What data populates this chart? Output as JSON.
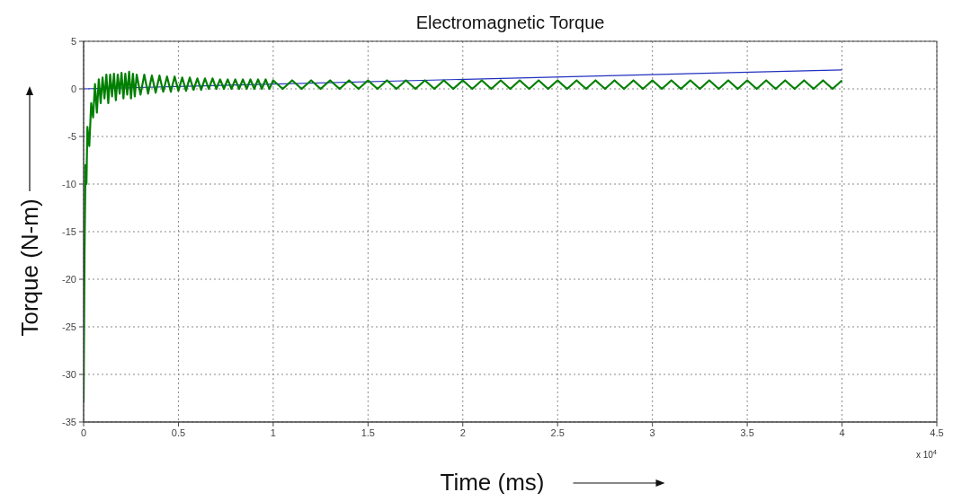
{
  "chart_data": {
    "type": "line",
    "title": "Electromagnetic Torque",
    "xlabel": "Time (ms)",
    "ylabel": "Torque (N-m)",
    "annotations": [
      "x 10$^{4}$"
    ],
    "xlim": [
      0,
      4.5
    ],
    "xticks": [
      0,
      0.5,
      1,
      1.5,
      2,
      2.5,
      3,
      3.5,
      4,
      4.5
    ],
    "ylim": [
      -35,
      5
    ],
    "yticks": [
      -35,
      -30,
      -25,
      -20,
      -15,
      -10,
      -5,
      0,
      5
    ],
    "grid": true,
    "series": [
      {
        "color": "#2030c0",
        "x": [
          0,
          4
        ],
        "values": [
          0,
          2
        ]
      },
      {
        "color": "#007f00",
        "x": [
          0,
          0.005,
          0.01,
          0.015,
          0.02,
          0.03,
          0.04,
          0.05,
          0.06,
          0.07,
          0.08,
          0.09,
          0.1,
          0.11,
          0.12,
          0.13,
          0.14,
          0.15,
          0.16,
          0.17,
          0.18,
          0.19,
          0.2,
          0.21,
          0.22,
          0.23,
          0.24,
          0.25,
          0.26,
          0.27,
          0.28,
          0.3,
          0.32,
          0.34,
          0.36,
          0.38,
          0.4,
          0.42,
          0.44,
          0.46,
          0.48,
          0.5,
          0.52,
          0.54,
          0.56,
          0.58,
          0.6,
          0.62,
          0.64,
          0.66,
          0.68,
          0.7,
          0.72,
          0.74,
          0.76,
          0.78,
          0.8,
          0.82,
          0.84,
          0.86,
          0.88,
          0.9,
          0.92,
          0.94,
          0.96,
          0.98,
          1.0,
          1.05,
          1.1,
          1.15,
          1.2,
          1.25,
          1.3,
          1.35,
          1.4,
          1.45,
          1.5,
          1.55,
          1.6,
          1.65,
          1.7,
          1.75,
          1.8,
          1.85,
          1.9,
          1.95,
          2.0,
          2.05,
          2.1,
          2.15,
          2.2,
          2.25,
          2.3,
          2.35,
          2.4,
          2.45,
          2.5,
          2.55,
          2.6,
          2.65,
          2.7,
          2.75,
          2.8,
          2.85,
          2.9,
          2.95,
          3.0,
          3.05,
          3.1,
          3.15,
          3.2,
          3.25,
          3.3,
          3.35,
          3.4,
          3.45,
          3.5,
          3.55,
          3.6,
          3.65,
          3.7,
          3.75,
          3.8,
          3.85,
          3.9,
          3.95,
          4.0
        ],
        "values": [
          -33,
          -17,
          -8,
          -10,
          -4,
          -6,
          -1.5,
          -3,
          0.5,
          -2.5,
          1,
          -1.5,
          1.2,
          -1,
          1.5,
          -1.5,
          1.5,
          -0.8,
          1.6,
          -1.2,
          1.5,
          -0.5,
          1.7,
          -1,
          1.6,
          -0.6,
          1.8,
          -1,
          1.6,
          -0.8,
          1.5,
          -0.6,
          1.5,
          -0.5,
          1.4,
          -0.4,
          1.4,
          -0.3,
          1.3,
          -0.3,
          1.3,
          -0.2,
          1.2,
          -0.2,
          1.2,
          -0.1,
          1.1,
          -0.1,
          1.1,
          0,
          1.1,
          0,
          1,
          0,
          1,
          0,
          1,
          0,
          1,
          0,
          1,
          0,
          1,
          0,
          1,
          0,
          0.9,
          0,
          0.9,
          0,
          0.9,
          0,
          0.9,
          0,
          0.9,
          0,
          0.9,
          0,
          0.9,
          0,
          0.9,
          0,
          0.9,
          0,
          0.9,
          0,
          0.9,
          0,
          0.9,
          0,
          0.9,
          0,
          0.9,
          0,
          0.9,
          0,
          0.9,
          0,
          0.9,
          0,
          0.9,
          0,
          0.9,
          0,
          0.9,
          0,
          0.9,
          0,
          0.9,
          0,
          0.9,
          0,
          0.9,
          0,
          0.9,
          0,
          0.9,
          0,
          0.9,
          0,
          0.9,
          0,
          0.9,
          0,
          0.9,
          0,
          0.9
        ]
      }
    ]
  }
}
